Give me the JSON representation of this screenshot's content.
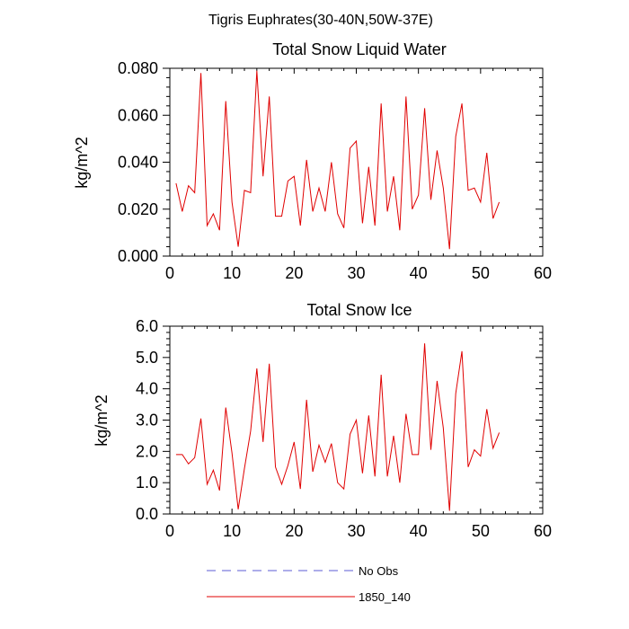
{
  "suptitle": "Tigris Euphrates(30-40N,50W-37E)",
  "legend": {
    "items": [
      {
        "label": "No Obs",
        "color": "#5b5bd6",
        "style": "dashed"
      },
      {
        "label": "1850_140",
        "color": "#e00000",
        "style": "solid"
      }
    ]
  },
  "chart_data": [
    {
      "type": "line",
      "title": "Total Snow Liquid Water",
      "xlabel": "",
      "ylabel": "kg/m^2",
      "xlim": [
        0,
        60
      ],
      "ylim": [
        0.0,
        0.08
      ],
      "xticks": [
        0,
        10,
        20,
        30,
        40,
        50,
        60
      ],
      "xtick_labels": [
        "0",
        "10",
        "20",
        "30",
        "40",
        "50",
        "60"
      ],
      "yticks": [
        0.0,
        0.02,
        0.04,
        0.06,
        0.08
      ],
      "ytick_labels": [
        "0.000",
        "0.020",
        "0.040",
        "0.060",
        "0.080"
      ],
      "x": [
        1,
        2,
        3,
        4,
        5,
        6,
        7,
        8,
        9,
        10,
        11,
        12,
        13,
        14,
        15,
        16,
        17,
        18,
        19,
        20,
        21,
        22,
        23,
        24,
        25,
        26,
        27,
        28,
        29,
        30,
        31,
        32,
        33,
        34,
        35,
        36,
        37,
        38,
        39,
        40,
        41,
        42,
        43,
        44,
        45,
        46,
        47,
        48,
        49,
        50,
        51,
        52,
        53
      ],
      "series": [
        {
          "name": "1850_140",
          "color": "#e00000",
          "values": [
            0.031,
            0.019,
            0.03,
            0.027,
            0.078,
            0.013,
            0.018,
            0.011,
            0.066,
            0.023,
            0.004,
            0.028,
            0.027,
            0.079,
            0.034,
            0.068,
            0.017,
            0.017,
            0.032,
            0.034,
            0.013,
            0.041,
            0.019,
            0.029,
            0.019,
            0.04,
            0.018,
            0.012,
            0.046,
            0.049,
            0.014,
            0.038,
            0.013,
            0.065,
            0.019,
            0.034,
            0.011,
            0.068,
            0.02,
            0.026,
            0.063,
            0.024,
            0.045,
            0.029,
            0.003,
            0.051,
            0.065,
            0.028,
            0.029,
            0.023,
            0.044,
            0.016,
            0.023
          ]
        }
      ]
    },
    {
      "type": "line",
      "title": "Total Snow Ice",
      "xlabel": "",
      "ylabel": "kg/m^2",
      "xlim": [
        0,
        60
      ],
      "ylim": [
        0.0,
        6.0
      ],
      "xticks": [
        0,
        10,
        20,
        30,
        40,
        50,
        60
      ],
      "xtick_labels": [
        "0",
        "10",
        "20",
        "30",
        "40",
        "50",
        "60"
      ],
      "yticks": [
        0.0,
        1.0,
        2.0,
        3.0,
        4.0,
        5.0,
        6.0
      ],
      "ytick_labels": [
        "0.0",
        "1.0",
        "2.0",
        "3.0",
        "4.0",
        "5.0",
        "6.0"
      ],
      "x": [
        1,
        2,
        3,
        4,
        5,
        6,
        7,
        8,
        9,
        10,
        11,
        12,
        13,
        14,
        15,
        16,
        17,
        18,
        19,
        20,
        21,
        22,
        23,
        24,
        25,
        26,
        27,
        28,
        29,
        30,
        31,
        32,
        33,
        34,
        35,
        36,
        37,
        38,
        39,
        40,
        41,
        42,
        43,
        44,
        45,
        46,
        47,
        48,
        49,
        50,
        51,
        52,
        53
      ],
      "series": [
        {
          "name": "1850_140",
          "color": "#e00000",
          "values": [
            1.9,
            1.9,
            1.6,
            1.8,
            3.05,
            0.95,
            1.4,
            0.75,
            3.4,
            1.95,
            0.15,
            1.45,
            2.65,
            4.65,
            2.3,
            4.8,
            1.5,
            0.95,
            1.55,
            2.3,
            0.8,
            3.65,
            1.35,
            2.2,
            1.65,
            2.25,
            1.0,
            0.8,
            2.55,
            3.0,
            1.3,
            3.15,
            1.2,
            4.45,
            1.2,
            2.5,
            1.0,
            3.2,
            1.9,
            1.9,
            5.45,
            2.05,
            4.25,
            2.75,
            0.1,
            3.85,
            5.2,
            1.5,
            2.05,
            1.85,
            3.35,
            2.1,
            2.6
          ]
        }
      ]
    }
  ]
}
